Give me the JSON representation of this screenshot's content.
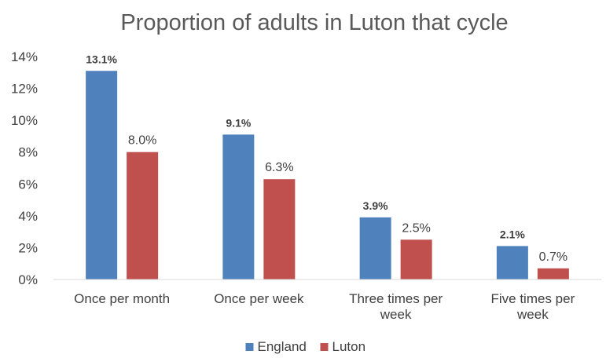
{
  "chart_data": {
    "type": "bar",
    "title": "Proportion of adults in Luton that cycle",
    "xlabel": "",
    "ylabel": "",
    "categories": [
      [
        "Once per month"
      ],
      [
        "Once per week"
      ],
      [
        "Three times per",
        "week"
      ],
      [
        "Five times per",
        "week"
      ]
    ],
    "series": [
      {
        "name": "England",
        "color": "#4f81bd",
        "values": [
          13.1,
          9.1,
          3.9,
          2.1
        ],
        "labels": [
          "13.1%",
          "9.1%",
          "3.9%",
          "2.1%"
        ]
      },
      {
        "name": "Luton",
        "color": "#c0504d",
        "values": [
          8.0,
          6.3,
          2.5,
          0.7
        ],
        "labels": [
          "8.0%",
          "6.3%",
          "2.5%",
          "0.7%"
        ]
      }
    ],
    "ylim": [
      0,
      14
    ],
    "yticks": [
      "0%",
      "2%",
      "4%",
      "6%",
      "8%",
      "10%",
      "12%",
      "14%"
    ],
    "grid": false,
    "legend_position": "bottom"
  }
}
